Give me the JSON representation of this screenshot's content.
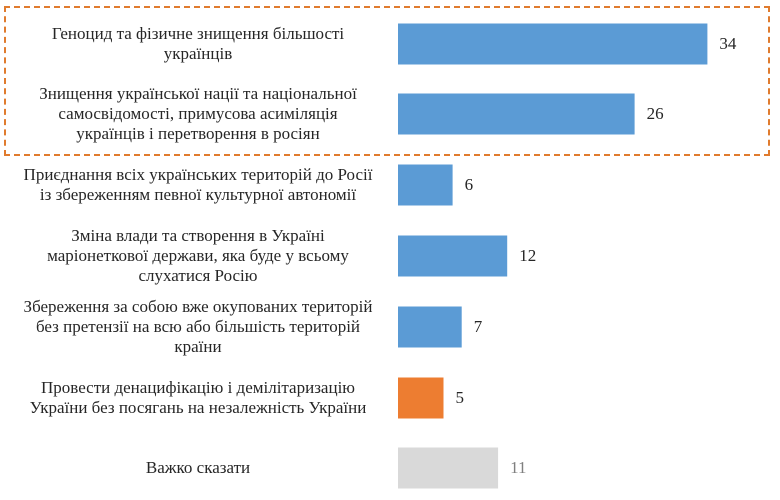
{
  "chart_data": {
    "type": "bar",
    "orientation": "horizontal",
    "categories": [
      [
        "Геноцид та фізичне знищення більшості",
        "українців"
      ],
      [
        "Знищення української нації та національної",
        "самосвідомості, примусова асиміляція",
        "українців і перетворення в росіян"
      ],
      [
        "Приєднання всіх українських територій до Росії",
        "із збереженням певної культурної автономії"
      ],
      [
        "Зміна влади та створення в Україні",
        "маріонеткової держави, яка буде у всьому",
        "слухатися Росію"
      ],
      [
        "Збереження за собою вже окупованих територій",
        "без претензії на всю або більшість територій",
        "країни"
      ],
      [
        "Провести денацифікацію і демілітаризацію",
        "України без посягань на незалежність України"
      ],
      [
        "Важко сказати"
      ]
    ],
    "values": [
      34,
      26,
      6,
      12,
      7,
      5,
      11
    ],
    "value_labels": [
      "34",
      "26",
      "6",
      "12",
      "7",
      "5",
      "11"
    ],
    "bar_colors": [
      "#5b9bd5",
      "#5b9bd5",
      "#5b9bd5",
      "#5b9bd5",
      "#5b9bd5",
      "#ed7d31",
      "#d9d9d9"
    ],
    "value_label_colors": [
      "#262626",
      "#262626",
      "#262626",
      "#262626",
      "#262626",
      "#262626",
      "#7f7f7f"
    ],
    "highlighted_categories": [
      0,
      1
    ],
    "highlight_color": "#e07b2e",
    "xlim": [
      0,
      40
    ],
    "grid": false,
    "legend": "none"
  }
}
